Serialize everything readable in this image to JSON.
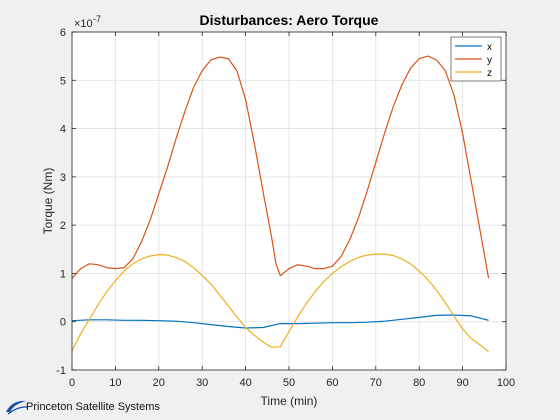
{
  "chart_data": {
    "type": "line",
    "title": "Disturbances: Aero Torque",
    "xlabel": "Time (min)",
    "ylabel": "Torque (Nm)",
    "y_exponent_label": "×10",
    "y_exponent": "-7",
    "xlim": [
      0,
      100
    ],
    "ylim": [
      -1,
      6
    ],
    "xticks": [
      0,
      10,
      20,
      30,
      40,
      50,
      60,
      70,
      80,
      90,
      100
    ],
    "yticks": [
      -1,
      0,
      1,
      2,
      3,
      4,
      5,
      6
    ],
    "grid": true,
    "legend_position": "top-right",
    "series": [
      {
        "name": "x",
        "color": "#0072BD",
        "x": [
          0,
          4,
          8,
          12,
          16,
          20,
          24,
          28,
          32,
          36,
          40,
          44,
          48,
          52,
          56,
          60,
          64,
          68,
          72,
          76,
          80,
          84,
          88,
          92,
          96
        ],
        "y": [
          0.02,
          0.04,
          0.04,
          0.03,
          0.03,
          0.02,
          0.01,
          -0.02,
          -0.06,
          -0.1,
          -0.13,
          -0.12,
          -0.04,
          -0.04,
          -0.03,
          -0.02,
          -0.02,
          -0.01,
          0.01,
          0.05,
          0.09,
          0.13,
          0.14,
          0.12,
          0.03
        ]
      },
      {
        "name": "y",
        "color": "#D95319",
        "x": [
          0,
          2,
          4,
          6,
          8,
          10,
          12,
          14,
          16,
          18,
          20,
          22,
          24,
          26,
          28,
          30,
          32,
          34,
          36,
          38,
          40,
          42,
          44,
          46,
          47,
          48,
          50,
          52,
          54,
          56,
          58,
          60,
          62,
          64,
          66,
          68,
          70,
          72,
          74,
          76,
          78,
          80,
          82,
          84,
          86,
          88,
          90,
          92,
          94,
          96
        ],
        "y": [
          0.9,
          1.1,
          1.2,
          1.18,
          1.12,
          1.1,
          1.12,
          1.3,
          1.65,
          2.1,
          2.65,
          3.2,
          3.8,
          4.35,
          4.85,
          5.2,
          5.42,
          5.48,
          5.45,
          5.2,
          4.6,
          3.7,
          2.7,
          1.75,
          1.2,
          0.95,
          1.1,
          1.18,
          1.15,
          1.1,
          1.1,
          1.15,
          1.35,
          1.7,
          2.15,
          2.7,
          3.3,
          3.9,
          4.45,
          4.9,
          5.25,
          5.45,
          5.5,
          5.42,
          5.2,
          4.7,
          3.9,
          2.9,
          1.9,
          0.9
        ]
      },
      {
        "name": "z",
        "color": "#EDB120",
        "x": [
          0,
          2,
          4,
          6,
          8,
          10,
          12,
          14,
          16,
          18,
          20,
          22,
          24,
          26,
          28,
          30,
          32,
          34,
          36,
          38,
          40,
          42,
          44,
          46,
          48,
          50,
          52,
          54,
          56,
          58,
          60,
          62,
          64,
          66,
          68,
          70,
          72,
          74,
          76,
          78,
          80,
          82,
          84,
          86,
          88,
          90,
          92,
          94,
          96
        ],
        "y": [
          -0.6,
          -0.25,
          0.05,
          0.35,
          0.62,
          0.85,
          1.05,
          1.2,
          1.3,
          1.36,
          1.39,
          1.38,
          1.33,
          1.25,
          1.12,
          0.96,
          0.78,
          0.56,
          0.33,
          0.1,
          -0.12,
          -0.28,
          -0.42,
          -0.53,
          -0.52,
          -0.2,
          0.1,
          0.38,
          0.62,
          0.83,
          1.0,
          1.14,
          1.25,
          1.33,
          1.38,
          1.4,
          1.4,
          1.37,
          1.3,
          1.2,
          1.05,
          0.87,
          0.65,
          0.4,
          0.12,
          -0.15,
          -0.35,
          -0.48,
          -0.62
        ]
      }
    ]
  },
  "branding": {
    "logo_text": "Princeton Satellite Systems"
  }
}
